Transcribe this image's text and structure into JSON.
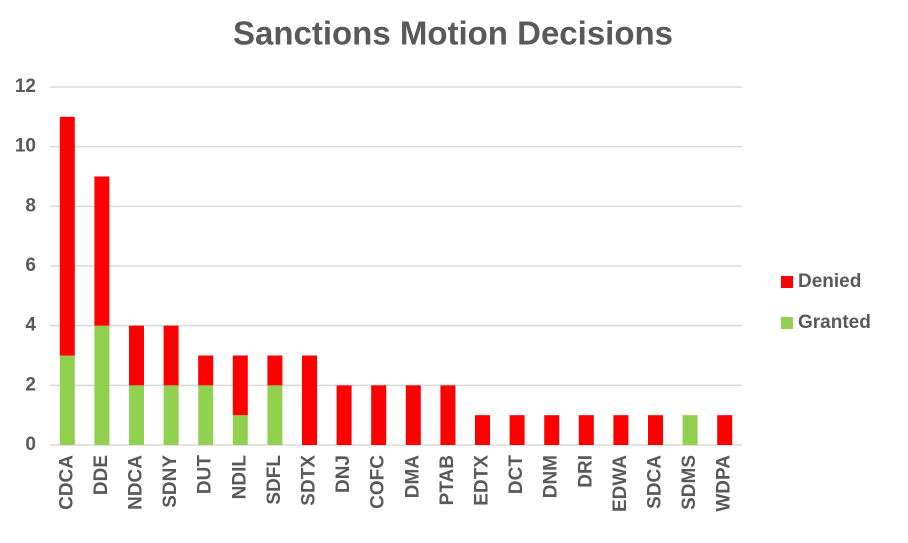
{
  "chart_data": {
    "type": "stacked_bar",
    "title": "Sanctions Motion Decisions",
    "categories": [
      "CDCA",
      "DDE",
      "NDCA",
      "SDNY",
      "DUT",
      "NDIL",
      "SDFL",
      "SDTX",
      "DNJ",
      "COFC",
      "DMA",
      "PTAB",
      "EDTX",
      "DCT",
      "DNM",
      "DRI",
      "EDWA",
      "SDCA",
      "SDMS",
      "WDPA"
    ],
    "series": [
      {
        "name": "Granted",
        "color": "#92d050",
        "values": [
          3,
          4,
          2,
          2,
          2,
          1,
          2,
          0,
          0,
          0,
          0,
          0,
          0,
          0,
          0,
          0,
          0,
          0,
          1,
          0
        ]
      },
      {
        "name": "Denied",
        "color": "#ff0000",
        "values": [
          8,
          5,
          2,
          2,
          1,
          2,
          1,
          3,
          2,
          2,
          2,
          2,
          1,
          1,
          1,
          1,
          1,
          1,
          0,
          1
        ]
      }
    ],
    "ylim": [
      0,
      12
    ],
    "yticks": [
      0,
      2,
      4,
      6,
      8,
      10,
      12
    ],
    "grid": true,
    "legend": "right"
  }
}
